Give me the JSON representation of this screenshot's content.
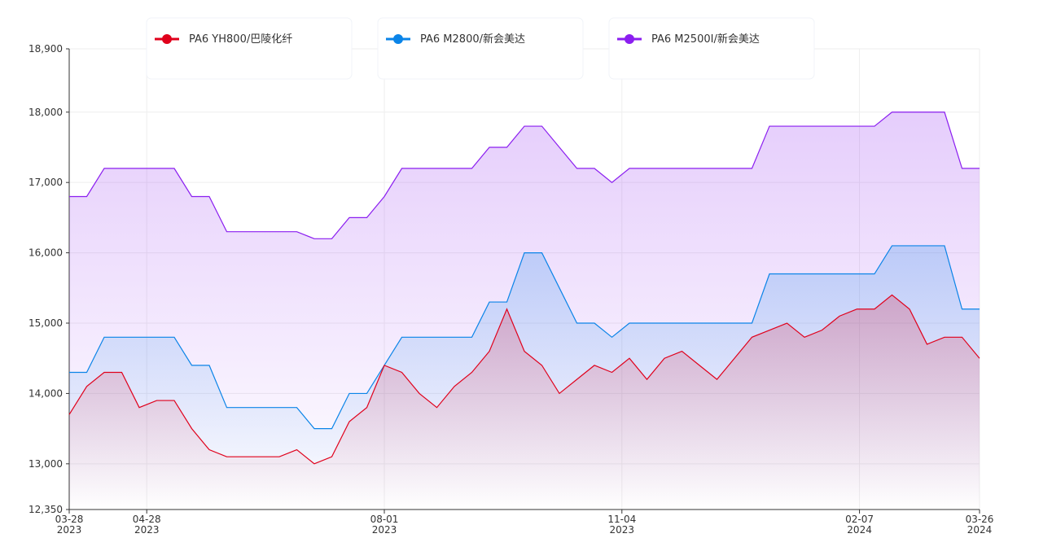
{
  "chart_data": {
    "type": "line",
    "x": [
      "2023-03-28",
      "2023-04-04",
      "2023-04-11",
      "2023-04-18",
      "2023-04-25",
      "2023-05-02",
      "2023-05-09",
      "2023-05-16",
      "2023-05-23",
      "2023-05-30",
      "2023-06-06",
      "2023-06-13",
      "2023-06-20",
      "2023-06-27",
      "2023-07-04",
      "2023-07-11",
      "2023-07-18",
      "2023-07-25",
      "2023-08-01",
      "2023-08-08",
      "2023-08-15",
      "2023-08-22",
      "2023-08-29",
      "2023-09-05",
      "2023-09-12",
      "2023-09-19",
      "2023-09-26",
      "2023-10-03",
      "2023-10-10",
      "2023-10-17",
      "2023-10-24",
      "2023-10-31",
      "2023-11-07",
      "2023-11-14",
      "2023-11-21",
      "2023-11-28",
      "2023-12-05",
      "2023-12-12",
      "2023-12-19",
      "2023-12-26",
      "2024-01-02",
      "2024-01-09",
      "2024-01-16",
      "2024-01-23",
      "2024-01-30",
      "2024-02-06",
      "2024-02-13",
      "2024-02-20",
      "2024-02-27",
      "2024-03-05",
      "2024-03-12",
      "2024-03-19",
      "2024-03-26"
    ],
    "series": [
      {
        "name": "PA6 YH800/巴陵化纤",
        "color": "#e0001b",
        "values": [
          13700,
          14100,
          14300,
          14300,
          13800,
          13900,
          13900,
          13500,
          13200,
          13100,
          13100,
          13100,
          13100,
          13200,
          13000,
          13100,
          13600,
          13800,
          14400,
          14300,
          14000,
          13800,
          14100,
          14300,
          14600,
          15200,
          14600,
          14400,
          14000,
          14200,
          14400,
          14300,
          14500,
          14200,
          14500,
          14600,
          14400,
          14200,
          14500,
          14800,
          14900,
          15000,
          14800,
          14900,
          15100,
          15200,
          15200,
          15400,
          15200,
          14700,
          14800,
          14800,
          14500
        ]
      },
      {
        "name": "PA6 M2800/新会美达",
        "color": "#0a84e8",
        "values": [
          14300,
          14300,
          14800,
          14800,
          14800,
          14800,
          14800,
          14400,
          14400,
          13800,
          13800,
          13800,
          13800,
          13800,
          13500,
          13500,
          14000,
          14000,
          14400,
          14800,
          14800,
          14800,
          14800,
          14800,
          15300,
          15300,
          16000,
          16000,
          15500,
          15000,
          15000,
          14800,
          15000,
          15000,
          15000,
          15000,
          15000,
          15000,
          15000,
          15000,
          15700,
          15700,
          15700,
          15700,
          15700,
          15700,
          15700,
          16100,
          16100,
          16100,
          16100,
          15200,
          15200
        ]
      },
      {
        "name": "PA6 M2500I/新会美达",
        "color": "#8b1ef0",
        "values": [
          16800,
          16800,
          17200,
          17200,
          17200,
          17200,
          17200,
          16800,
          16800,
          16300,
          16300,
          16300,
          16300,
          16300,
          16200,
          16200,
          16500,
          16500,
          16800,
          17200,
          17200,
          17200,
          17200,
          17200,
          17500,
          17500,
          17800,
          17800,
          17500,
          17200,
          17200,
          17000,
          17200,
          17200,
          17200,
          17200,
          17200,
          17200,
          17200,
          17200,
          17800,
          17800,
          17800,
          17800,
          17800,
          17800,
          17800,
          18000,
          18000,
          18000,
          18000,
          17200,
          17200
        ]
      }
    ],
    "xlim": [
      "2023-03-28",
      "2024-03-26"
    ],
    "xticks": [
      {
        "value": "2023-03-28",
        "label": [
          "03-28",
          "2023"
        ]
      },
      {
        "value": "2023-04-28",
        "label": [
          "04-28",
          "2023"
        ]
      },
      {
        "value": "2023-08-01",
        "label": [
          "08-01",
          "2023"
        ]
      },
      {
        "value": "2023-11-04",
        "label": [
          "11-04",
          "2023"
        ]
      },
      {
        "value": "2024-02-07",
        "label": [
          "02-07",
          "2024"
        ]
      },
      {
        "value": "2024-03-26",
        "label": [
          "03-26",
          "2024"
        ]
      }
    ],
    "ylim": [
      12350,
      18900
    ],
    "yticks": [
      {
        "value": 12350,
        "label": "12,350"
      },
      {
        "value": 13000,
        "label": "13,000"
      },
      {
        "value": 14000,
        "label": "14,000"
      },
      {
        "value": 15000,
        "label": "15,000"
      },
      {
        "value": 16000,
        "label": "16,000"
      },
      {
        "value": 17000,
        "label": "17,000"
      },
      {
        "value": 18000,
        "label": "18,000"
      },
      {
        "value": 18900,
        "label": "18,900"
      }
    ],
    "grid": true
  }
}
